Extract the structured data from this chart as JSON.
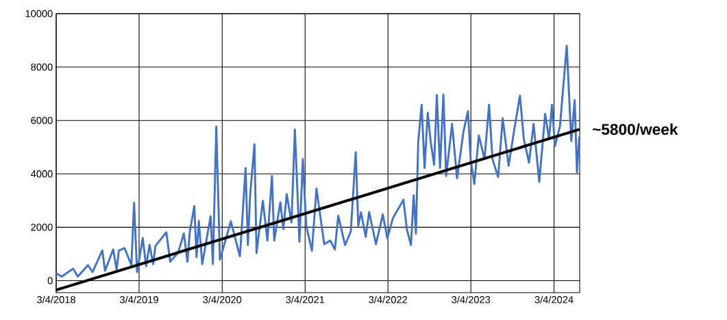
{
  "chart_data": {
    "type": "line",
    "xlim": [
      "2018-03-04",
      "2024-06-25"
    ],
    "ylim": [
      -450,
      10000
    ],
    "xticks": [
      {
        "value": "2018-03-04",
        "label": "3/4/2018"
      },
      {
        "value": "2019-03-04",
        "label": "3/4/2019"
      },
      {
        "value": "2020-03-04",
        "label": "3/4/2020"
      },
      {
        "value": "2021-03-04",
        "label": "3/4/2021"
      },
      {
        "value": "2022-03-04",
        "label": "3/4/2022"
      },
      {
        "value": "2023-03-04",
        "label": "3/4/2023"
      },
      {
        "value": "2024-03-04",
        "label": "3/4/2024"
      }
    ],
    "yticks": [
      0,
      2000,
      4000,
      6000,
      8000,
      10000
    ],
    "grid": true,
    "legend": false,
    "marker": "none",
    "line_style": "solid",
    "series": [
      {
        "color": "#4472c4",
        "x": [
          "2018-03-04",
          "2018-03-28",
          "2018-05-18",
          "2018-06-07",
          "2018-07-22",
          "2018-08-11",
          "2018-09-23",
          "2018-10-05",
          "2018-11-10",
          "2018-11-25",
          "2018-12-05",
          "2018-12-30",
          "2019-01-29",
          "2019-02-10",
          "2019-02-23",
          "2019-03-20",
          "2019-04-04",
          "2019-04-19",
          "2019-05-05",
          "2019-05-15",
          "2019-07-02",
          "2019-07-19",
          "2019-08-23",
          "2019-09-17",
          "2019-10-03",
          "2019-10-13",
          "2019-11-02",
          "2019-11-12",
          "2019-11-22",
          "2019-12-07",
          "2020-01-13",
          "2020-01-23",
          "2020-02-07",
          "2020-02-23",
          "2020-04-11",
          "2020-05-21",
          "2020-06-15",
          "2020-06-25",
          "2020-07-05",
          "2020-07-24",
          "2020-08-02",
          "2020-08-30",
          "2020-09-19",
          "2020-10-09",
          "2020-10-19",
          "2020-11-15",
          "2020-11-28",
          "2020-12-13",
          "2021-01-03",
          "2021-01-18",
          "2021-02-07",
          "2021-02-22",
          "2021-03-09",
          "2021-04-03",
          "2021-04-23",
          "2021-05-27",
          "2021-06-23",
          "2021-07-13",
          "2021-07-28",
          "2021-08-27",
          "2021-09-21",
          "2021-10-13",
          "2021-10-24",
          "2021-11-05",
          "2021-11-26",
          "2021-12-11",
          "2022-01-10",
          "2022-02-09",
          "2022-03-01",
          "2022-03-26",
          "2022-05-11",
          "2022-05-26",
          "2022-06-13",
          "2022-06-25",
          "2022-07-05",
          "2022-07-15",
          "2022-07-30",
          "2022-08-12",
          "2022-08-26",
          "2022-09-08",
          "2022-09-23",
          "2022-10-05",
          "2022-10-19",
          "2022-11-03",
          "2022-11-15",
          "2022-12-11",
          "2023-01-02",
          "2023-01-30",
          "2023-02-19",
          "2023-03-03",
          "2023-03-19",
          "2023-04-08",
          "2023-05-03",
          "2023-05-23",
          "2023-06-07",
          "2023-07-02",
          "2023-07-22",
          "2023-08-17",
          "2023-09-11",
          "2023-10-06",
          "2023-10-23",
          "2023-11-15",
          "2023-12-05",
          "2023-12-30",
          "2024-01-25",
          "2024-02-11",
          "2024-02-24",
          "2024-03-08",
          "2024-03-30",
          "2024-04-29",
          "2024-05-19",
          "2024-06-03",
          "2024-06-13",
          "2024-06-23"
        ],
        "values": [
          280,
          150,
          450,
          150,
          580,
          320,
          1130,
          370,
          1170,
          410,
          1130,
          1220,
          580,
          2920,
          320,
          1600,
          540,
          1340,
          620,
          1300,
          1810,
          710,
          1050,
          1770,
          710,
          1810,
          2790,
          880,
          2240,
          620,
          2410,
          620,
          5770,
          780,
          2220,
          910,
          4220,
          1330,
          3200,
          5110,
          1030,
          2990,
          1500,
          3920,
          1500,
          2940,
          1930,
          3240,
          2180,
          5660,
          1460,
          4550,
          2050,
          1120,
          3450,
          1370,
          1500,
          1170,
          2430,
          1330,
          1840,
          4810,
          2050,
          2560,
          1640,
          2570,
          1370,
          2480,
          1590,
          2350,
          3030,
          1930,
          1330,
          3200,
          1760,
          5190,
          6590,
          4220,
          6290,
          5200,
          4340,
          6950,
          4220,
          6970,
          3920,
          5870,
          3830,
          5570,
          6350,
          4550,
          3620,
          5440,
          4550,
          6590,
          4550,
          3880,
          6080,
          4300,
          5660,
          6930,
          5300,
          4420,
          5870,
          3700,
          6250,
          5300,
          6590,
          5040,
          5780,
          8800,
          5230,
          6760,
          4050,
          5400
        ]
      },
      {
        "color": "#000000",
        "x": [
          "2018-03-04",
          "2024-06-25"
        ],
        "values": [
          -350,
          5670
        ]
      }
    ],
    "annotations": [
      {
        "text": "~5800/week",
        "x": "2024-06-25",
        "y": 5670
      }
    ]
  }
}
